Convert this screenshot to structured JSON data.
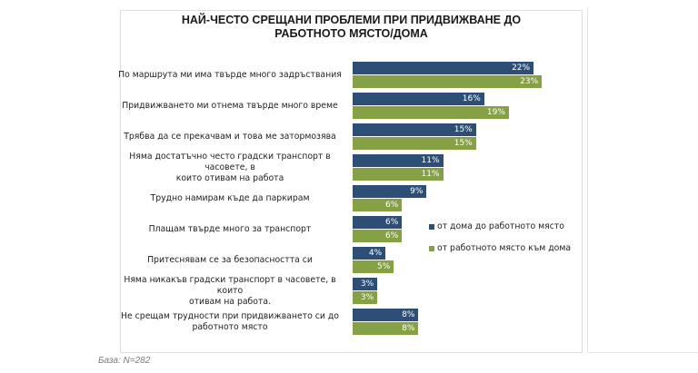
{
  "chart_data": {
    "type": "bar",
    "orientation": "horizontal",
    "title": "НАЙ-ЧЕСТО СРЕЩАНИ ПРОБЛЕМИ ПРИ ПРИДВИЖВАНЕ ДО РАБОТНОТО МЯСТО/ДОМА",
    "title_lines": [
      "НАЙ-ЧЕСТО СРЕЩАНИ ПРОБЛЕМИ ПРИ ПРИДВИЖВАНЕ ДО",
      "РАБОТНОТО МЯСТО/ДОМА"
    ],
    "categories": [
      [
        "По маршрута ми има твърде много задръствания"
      ],
      [
        "Придвижването ми отнема твърде много време"
      ],
      [
        "Трябва да се прекачвам и това ме затормозява"
      ],
      [
        "Няма достатъчно често градски транспорт в часовете, в",
        "които отивам на работа"
      ],
      [
        "Трудно намирам къде да паркирам"
      ],
      [
        "Плащам твърде много за транспорт"
      ],
      [
        "Притеснявам се за безопасността си"
      ],
      [
        "Няма никакъв градски транспорт в часовете, в които",
        "отивам на работа."
      ],
      [
        "Не срещам трудности при придвижването си до",
        "работното място"
      ]
    ],
    "series": [
      {
        "name": "от дома до работното място",
        "color": "#2e4f75",
        "values": [
          22,
          16,
          15,
          11,
          9,
          6,
          4,
          3,
          8
        ],
        "labels": [
          "22%",
          "16%",
          "15%",
          "11%",
          "9%",
          "6%",
          "4%",
          "3%",
          "8%"
        ]
      },
      {
        "name": "от работното място към дома",
        "color": "#86a046",
        "values": [
          23,
          19,
          15,
          11,
          6,
          6,
          5,
          3,
          8
        ],
        "labels": [
          "23%",
          "19%",
          "15%",
          "11%",
          "6%",
          "6%",
          "5%",
          "3%",
          "8%"
        ]
      }
    ],
    "unit": "%",
    "xlim": [
      0,
      25
    ],
    "grid": false,
    "legend_position": "right",
    "xlabel": "",
    "ylabel": ""
  },
  "footnote": "База: N=282"
}
